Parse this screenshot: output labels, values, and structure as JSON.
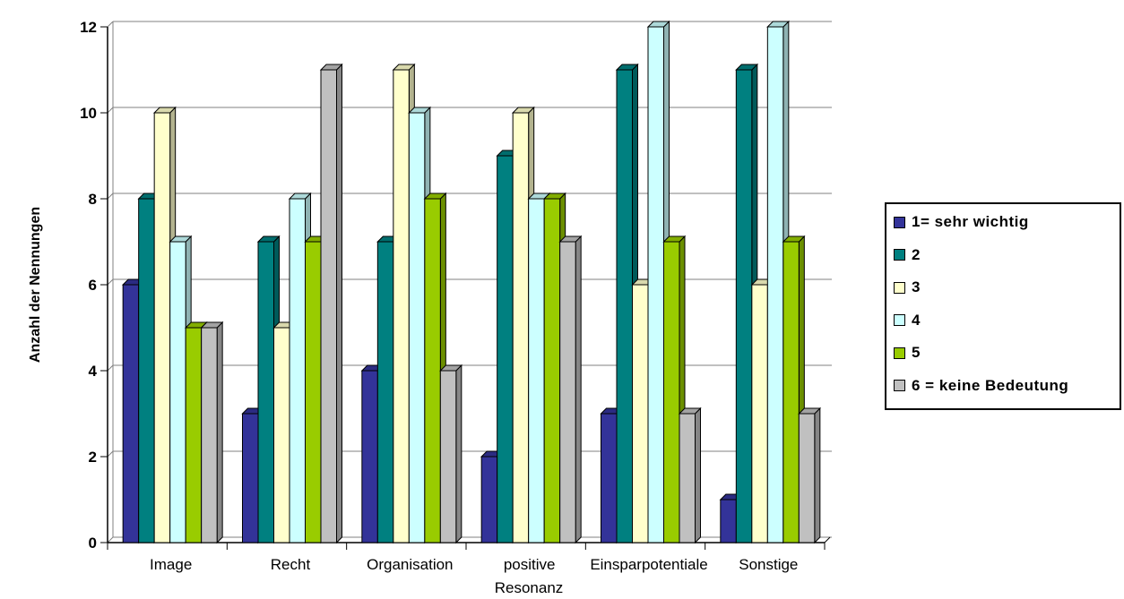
{
  "chart_data": {
    "type": "bar",
    "title": "",
    "xlabel": "Resonanz",
    "ylabel": "Anzahl der Nennungen",
    "ylim": [
      0,
      12
    ],
    "yticks": [
      "0",
      "2",
      "4",
      "6",
      "8",
      "10",
      "12"
    ],
    "grid": true,
    "legend_position": "right",
    "categories": [
      "Image",
      "Recht",
      "Organisation",
      "positive",
      "Einsparpotentiale",
      "Sonstige"
    ],
    "series": [
      {
        "name": "1= sehr wichtig",
        "color": "#333399",
        "values": [
          6,
          3,
          4,
          2,
          3,
          1
        ]
      },
      {
        "name": "2",
        "color": "#008080",
        "values": [
          8,
          7,
          7,
          9,
          11,
          11
        ]
      },
      {
        "name": "3",
        "color": "#FFFFCC",
        "values": [
          10,
          5,
          11,
          10,
          6,
          6
        ]
      },
      {
        "name": "4",
        "color": "#CCFFFF",
        "values": [
          7,
          8,
          10,
          8,
          12,
          12
        ]
      },
      {
        "name": "5",
        "color": "#99CC00",
        "values": [
          5,
          7,
          8,
          8,
          7,
          7
        ]
      },
      {
        "name": "6 = keine Bedeutung",
        "color": "#C0C0C0",
        "values": [
          5,
          11,
          4,
          7,
          3,
          3
        ]
      }
    ]
  }
}
